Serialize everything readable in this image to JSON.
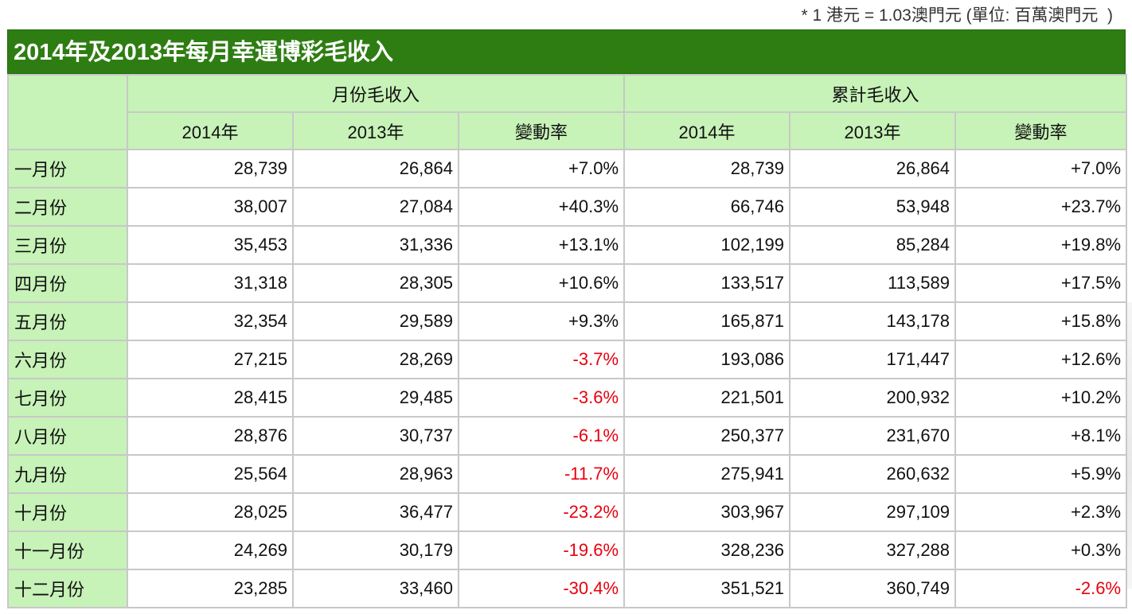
{
  "note": "* 1 港元 = 1.03澳門元 (單位: 百萬澳門元  )",
  "title": "2014年及2013年每月幸運博彩毛收入",
  "headers": {
    "group_monthly": "月份毛收入",
    "group_cumulative": "累計毛收入",
    "col_2014": "2014年",
    "col_2013": "2013年",
    "col_change": "變動率"
  },
  "colors": {
    "title_bg": "#2e7d13",
    "header_bg": "#c7f2b8",
    "negative": "#e8000e"
  },
  "rows": [
    {
      "month": "一月份",
      "m2014": "28,739",
      "m2013": "26,864",
      "mchg": "+7.0%",
      "c2014": "28,739",
      "c2013": "26,864",
      "cchg": "+7.0%"
    },
    {
      "month": "二月份",
      "m2014": "38,007",
      "m2013": "27,084",
      "mchg": "+40.3%",
      "c2014": "66,746",
      "c2013": "53,948",
      "cchg": "+23.7%"
    },
    {
      "month": "三月份",
      "m2014": "35,453",
      "m2013": "31,336",
      "mchg": "+13.1%",
      "c2014": "102,199",
      "c2013": "85,284",
      "cchg": "+19.8%"
    },
    {
      "month": "四月份",
      "m2014": "31,318",
      "m2013": "28,305",
      "mchg": "+10.6%",
      "c2014": "133,517",
      "c2013": "113,589",
      "cchg": "+17.5%"
    },
    {
      "month": "五月份",
      "m2014": "32,354",
      "m2013": "29,589",
      "mchg": "+9.3%",
      "c2014": "165,871",
      "c2013": "143,178",
      "cchg": "+15.8%"
    },
    {
      "month": "六月份",
      "m2014": "27,215",
      "m2013": "28,269",
      "mchg": "-3.7%",
      "c2014": "193,086",
      "c2013": "171,447",
      "cchg": "+12.6%"
    },
    {
      "month": "七月份",
      "m2014": "28,415",
      "m2013": "29,485",
      "mchg": "-3.6%",
      "c2014": "221,501",
      "c2013": "200,932",
      "cchg": "+10.2%"
    },
    {
      "month": "八月份",
      "m2014": "28,876",
      "m2013": "30,737",
      "mchg": "-6.1%",
      "c2014": "250,377",
      "c2013": "231,670",
      "cchg": "+8.1%"
    },
    {
      "month": "九月份",
      "m2014": "25,564",
      "m2013": "28,963",
      "mchg": "-11.7%",
      "c2014": "275,941",
      "c2013": "260,632",
      "cchg": "+5.9%"
    },
    {
      "month": "十月份",
      "m2014": "28,025",
      "m2013": "36,477",
      "mchg": "-23.2%",
      "c2014": "303,967",
      "c2013": "297,109",
      "cchg": "+2.3%"
    },
    {
      "month": "十一月份",
      "m2014": "24,269",
      "m2013": "30,179",
      "mchg": "-19.6%",
      "c2014": "328,236",
      "c2013": "327,288",
      "cchg": "+0.3%"
    },
    {
      "month": "十二月份",
      "m2014": "23,285",
      "m2013": "33,460",
      "mchg": "-30.4%",
      "c2014": "351,521",
      "c2013": "360,749",
      "cchg": "-2.6%"
    }
  ]
}
